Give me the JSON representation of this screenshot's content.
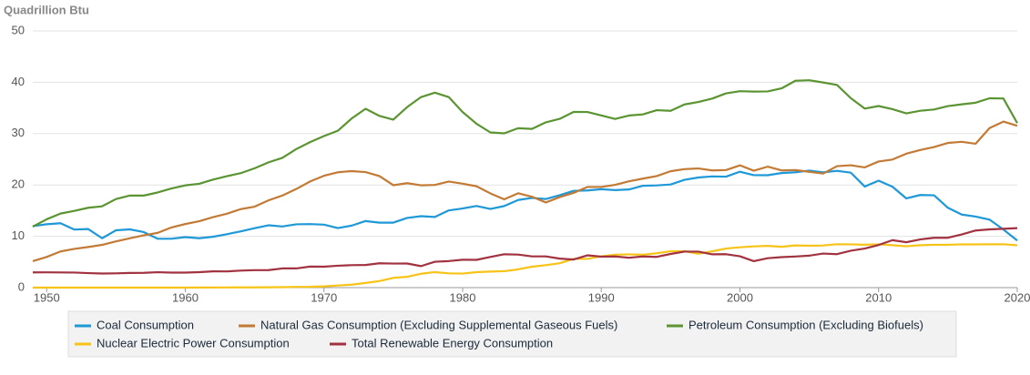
{
  "chart_data": {
    "type": "line",
    "y_label": "Quadrillion Btu",
    "x": [
      1949,
      1950,
      1951,
      1952,
      1953,
      1954,
      1955,
      1956,
      1957,
      1958,
      1959,
      1960,
      1961,
      1962,
      1963,
      1964,
      1965,
      1966,
      1967,
      1968,
      1969,
      1970,
      1971,
      1972,
      1973,
      1974,
      1975,
      1976,
      1977,
      1978,
      1979,
      1980,
      1981,
      1982,
      1983,
      1984,
      1985,
      1986,
      1987,
      1988,
      1989,
      1990,
      1991,
      1992,
      1993,
      1994,
      1995,
      1996,
      1997,
      1998,
      1999,
      2000,
      2001,
      2002,
      2003,
      2004,
      2005,
      2006,
      2007,
      2008,
      2009,
      2010,
      2011,
      2012,
      2013,
      2014,
      2015,
      2016,
      2017,
      2018,
      2019,
      2020
    ],
    "xlim": [
      1949,
      2020
    ],
    "xticks": [
      1950,
      1960,
      1970,
      1980,
      1990,
      2000,
      2010,
      2020
    ],
    "ylim": [
      0,
      50
    ],
    "yticks": [
      0,
      10,
      20,
      30,
      40,
      50
    ],
    "grid": true,
    "legend": "bottom",
    "series": [
      {
        "name": "Coal Consumption",
        "color": "#1e98d6",
        "values": [
          11.98,
          12.35,
          12.55,
          11.31,
          11.41,
          9.62,
          11.17,
          11.35,
          10.82,
          9.53,
          9.52,
          9.84,
          9.62,
          9.91,
          10.41,
          10.96,
          11.58,
          12.14,
          11.91,
          12.33,
          12.38,
          12.27,
          11.6,
          12.08,
          12.97,
          12.66,
          12.66,
          13.58,
          13.92,
          13.77,
          15.04,
          15.42,
          15.91,
          15.32,
          15.89,
          17.07,
          17.48,
          17.26,
          18.01,
          18.85,
          18.93,
          19.17,
          18.99,
          19.12,
          19.84,
          19.91,
          20.09,
          21.0,
          21.45,
          21.66,
          21.62,
          22.58,
          21.91,
          21.9,
          22.32,
          22.47,
          22.8,
          22.45,
          22.75,
          22.39,
          19.69,
          20.83,
          19.66,
          17.38,
          18.04,
          17.99,
          15.55,
          14.23,
          13.84,
          13.25,
          11.32,
          9.18
        ]
      },
      {
        "name": "Natural Gas Consumption (Excluding Supplemental Gaseous Fuels)",
        "color": "#c27a35",
        "values": [
          5.15,
          5.97,
          7.05,
          7.55,
          7.91,
          8.33,
          9.0,
          9.61,
          10.19,
          10.66,
          11.72,
          12.39,
          12.93,
          13.73,
          14.4,
          15.29,
          15.77,
          17.0,
          17.94,
          19.21,
          20.68,
          21.79,
          22.47,
          22.7,
          22.51,
          21.73,
          19.95,
          20.35,
          19.93,
          20.0,
          20.67,
          20.24,
          19.75,
          18.36,
          17.2,
          18.38,
          17.7,
          16.59,
          17.63,
          18.45,
          19.6,
          19.6,
          20.03,
          20.71,
          21.23,
          21.73,
          22.67,
          23.08,
          23.22,
          22.83,
          22.91,
          23.82,
          22.77,
          23.56,
          22.83,
          22.91,
          22.56,
          22.22,
          23.66,
          23.84,
          23.42,
          24.57,
          24.95,
          26.09,
          26.81,
          27.38,
          28.19,
          28.4,
          28.03,
          31.07,
          32.34,
          31.53
        ]
      },
      {
        "name": "Petroleum Consumption (Excluding Biofuels)",
        "color": "#5b9432",
        "values": [
          11.88,
          13.31,
          14.43,
          14.95,
          15.56,
          15.84,
          17.25,
          17.94,
          17.93,
          18.53,
          19.32,
          19.92,
          20.22,
          21.05,
          21.7,
          22.3,
          23.25,
          24.4,
          25.28,
          26.98,
          28.34,
          29.52,
          30.56,
          32.95,
          34.84,
          33.45,
          32.73,
          35.17,
          37.12,
          37.97,
          37.12,
          34.2,
          31.93,
          30.23,
          30.05,
          31.05,
          30.92,
          32.2,
          32.87,
          34.22,
          34.21,
          33.55,
          32.85,
          33.53,
          33.74,
          34.56,
          34.44,
          35.68,
          36.16,
          36.82,
          37.84,
          38.26,
          38.19,
          38.22,
          38.81,
          40.29,
          40.39,
          39.96,
          39.48,
          36.9,
          34.88,
          35.37,
          34.76,
          33.94,
          34.45,
          34.7,
          35.36,
          35.7,
          36.02,
          36.88,
          36.85,
          32.05
        ]
      },
      {
        "name": "Nuclear Electric Power Consumption",
        "color": "#f7c316",
        "values": [
          0,
          0,
          0,
          0,
          0,
          0,
          0,
          0,
          0,
          0.002,
          0.002,
          0.006,
          0.02,
          0.026,
          0.038,
          0.04,
          0.043,
          0.064,
          0.088,
          0.142,
          0.154,
          0.24,
          0.41,
          0.58,
          0.91,
          1.27,
          1.9,
          2.11,
          2.7,
          3.02,
          2.78,
          2.74,
          3.01,
          3.13,
          3.2,
          3.55,
          4.08,
          4.38,
          4.75,
          5.59,
          5.6,
          6.1,
          6.42,
          6.48,
          6.41,
          6.69,
          7.08,
          7.09,
          6.6,
          7.07,
          7.61,
          7.86,
          8.03,
          8.14,
          7.96,
          8.22,
          8.16,
          8.21,
          8.46,
          8.43,
          8.36,
          8.43,
          8.27,
          8.06,
          8.27,
          8.34,
          8.34,
          8.43,
          8.42,
          8.44,
          8.45,
          8.25
        ]
      },
      {
        "name": "Total Renewable Energy Consumption",
        "color": "#a1323f",
        "values": [
          2.97,
          2.98,
          2.96,
          2.94,
          2.83,
          2.75,
          2.78,
          2.86,
          2.88,
          3.0,
          2.93,
          2.93,
          3.01,
          3.17,
          3.16,
          3.31,
          3.4,
          3.41,
          3.74,
          3.74,
          4.1,
          4.08,
          4.27,
          4.38,
          4.41,
          4.74,
          4.69,
          4.7,
          4.19,
          5.04,
          5.17,
          5.43,
          5.41,
          5.98,
          6.5,
          6.44,
          6.08,
          6.08,
          5.65,
          5.48,
          6.29,
          6.04,
          6.07,
          5.82,
          6.07,
          5.99,
          6.56,
          7.01,
          7.01,
          6.49,
          6.51,
          6.1,
          5.16,
          5.73,
          5.94,
          6.06,
          6.23,
          6.64,
          6.52,
          7.19,
          7.61,
          8.31,
          9.24,
          8.84,
          9.39,
          9.71,
          9.71,
          10.36,
          11.13,
          11.35,
          11.46,
          11.59
        ]
      }
    ]
  }
}
